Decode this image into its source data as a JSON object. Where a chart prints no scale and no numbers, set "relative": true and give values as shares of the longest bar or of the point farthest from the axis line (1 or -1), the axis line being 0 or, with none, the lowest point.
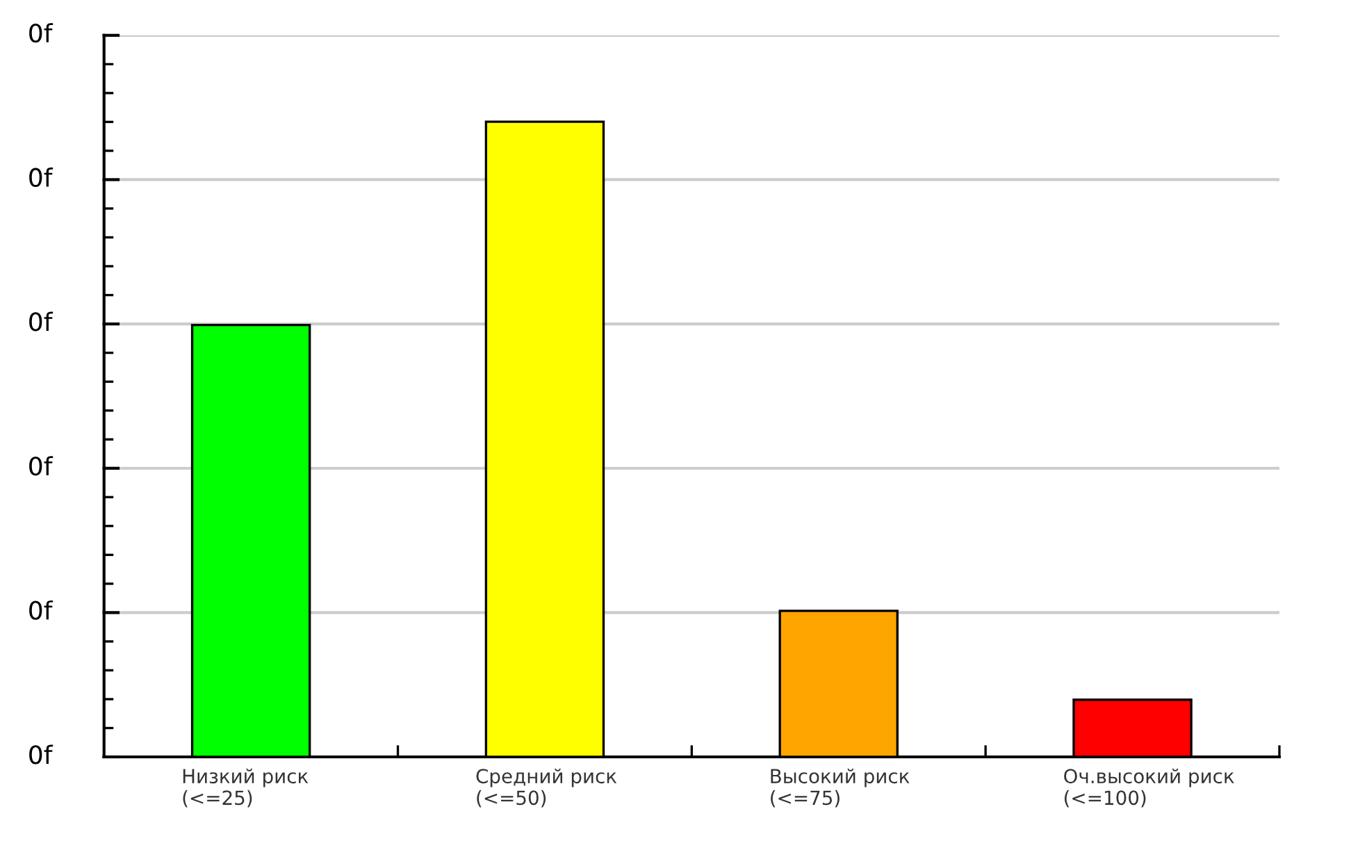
{
  "chart_data": {
    "type": "bar",
    "categories": [
      "Низкий риск\n(<=25)",
      "Средний риск\n(<=50)",
      "Высокий риск\n(<=75)",
      "Оч.высокий риск\n(<=100)"
    ],
    "values": [
      0.68,
      1,
      0.23,
      0.09
    ],
    "colors": [
      "#00ff00",
      "#ffff00",
      "#ffa500",
      "#ff0000"
    ],
    "relative": true,
    "annotations": [
      "0f",
      "0f",
      "0f",
      "0f",
      "0f",
      "0f"
    ],
    "grid": "y"
  }
}
